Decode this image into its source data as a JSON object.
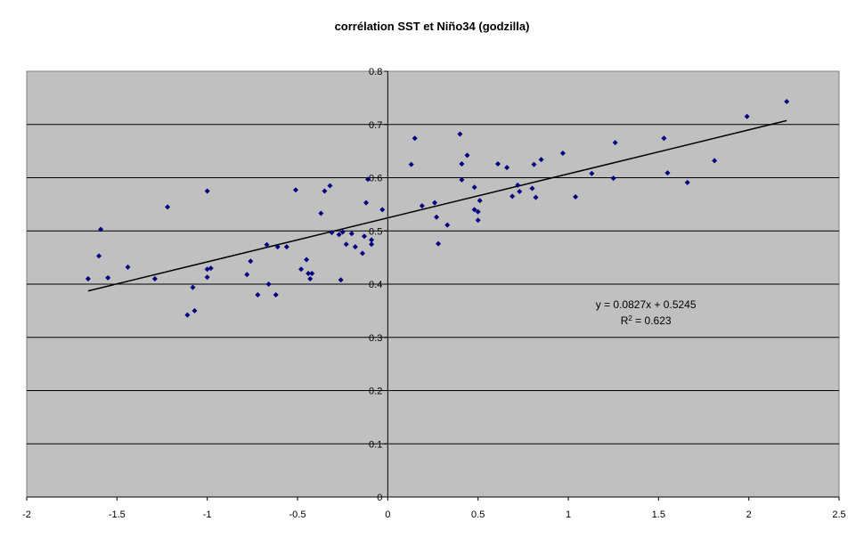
{
  "chart_data": {
    "type": "scatter",
    "title": "corrélation SST et Niño34 (godzilla)",
    "xlabel": "",
    "ylabel": "",
    "xlim": [
      -2,
      2.5
    ],
    "ylim": [
      0,
      0.8
    ],
    "xticks": [
      "-2",
      "-1.5",
      "-1",
      "-0.5",
      "0",
      "0.5",
      "1",
      "1.5",
      "2",
      "2.5"
    ],
    "yticks": [
      "0",
      "0.1",
      "0.2",
      "0.3",
      "0.4",
      "0.5",
      "0.6",
      "0.7",
      "0.8"
    ],
    "grid": "horizontal",
    "colors": {
      "plot_bg": "#c0c0c0",
      "marker": "#00007f",
      "trend": "#000000",
      "gridline": "#000000"
    },
    "points": [
      [
        -1.66,
        0.41
      ],
      [
        -1.6,
        0.453
      ],
      [
        -1.59,
        0.503
      ],
      [
        -1.55,
        0.412
      ],
      [
        -1.44,
        0.432
      ],
      [
        -1.29,
        0.41
      ],
      [
        -1.22,
        0.545
      ],
      [
        -1.11,
        0.342
      ],
      [
        -1.08,
        0.394
      ],
      [
        -1.07,
        0.35
      ],
      [
        -1.0,
        0.428
      ],
      [
        -1.0,
        0.413
      ],
      [
        -1.0,
        0.575
      ],
      [
        -0.98,
        0.43
      ],
      [
        -0.78,
        0.418
      ],
      [
        -0.76,
        0.443
      ],
      [
        -0.72,
        0.38
      ],
      [
        -0.67,
        0.474
      ],
      [
        -0.66,
        0.4
      ],
      [
        -0.62,
        0.38
      ],
      [
        -0.61,
        0.47
      ],
      [
        -0.56,
        0.47
      ],
      [
        -0.51,
        0.577
      ],
      [
        -0.48,
        0.428
      ],
      [
        -0.45,
        0.446
      ],
      [
        -0.44,
        0.42
      ],
      [
        -0.43,
        0.41
      ],
      [
        -0.42,
        0.42
      ],
      [
        -0.37,
        0.533
      ],
      [
        -0.35,
        0.575
      ],
      [
        -0.32,
        0.585
      ],
      [
        -0.31,
        0.497
      ],
      [
        -0.27,
        0.493
      ],
      [
        -0.26,
        0.408
      ],
      [
        -0.25,
        0.498
      ],
      [
        -0.23,
        0.475
      ],
      [
        -0.2,
        0.495
      ],
      [
        -0.18,
        0.47
      ],
      [
        -0.14,
        0.458
      ],
      [
        -0.13,
        0.49
      ],
      [
        -0.12,
        0.553
      ],
      [
        -0.11,
        0.597
      ],
      [
        -0.09,
        0.475
      ],
      [
        -0.09,
        0.483
      ],
      [
        -0.03,
        0.54
      ],
      [
        0.13,
        0.625
      ],
      [
        0.15,
        0.674
      ],
      [
        0.19,
        0.547
      ],
      [
        0.26,
        0.553
      ],
      [
        0.27,
        0.526
      ],
      [
        0.28,
        0.476
      ],
      [
        0.33,
        0.511
      ],
      [
        0.4,
        0.682
      ],
      [
        0.41,
        0.596
      ],
      [
        0.41,
        0.626
      ],
      [
        0.44,
        0.642
      ],
      [
        0.48,
        0.582
      ],
      [
        0.48,
        0.54
      ],
      [
        0.5,
        0.536
      ],
      [
        0.5,
        0.52
      ],
      [
        0.51,
        0.557
      ],
      [
        0.61,
        0.626
      ],
      [
        0.66,
        0.619
      ],
      [
        0.69,
        0.565
      ],
      [
        0.72,
        0.586
      ],
      [
        0.73,
        0.574
      ],
      [
        0.8,
        0.58
      ],
      [
        0.81,
        0.625
      ],
      [
        0.82,
        0.563
      ],
      [
        0.85,
        0.634
      ],
      [
        0.97,
        0.646
      ],
      [
        1.04,
        0.564
      ],
      [
        1.13,
        0.608
      ],
      [
        1.25,
        0.599
      ],
      [
        1.26,
        0.666
      ],
      [
        1.53,
        0.674
      ],
      [
        1.55,
        0.609
      ],
      [
        1.66,
        0.591
      ],
      [
        1.81,
        0.632
      ],
      [
        1.99,
        0.715
      ],
      [
        2.21,
        0.743
      ]
    ],
    "trendline": {
      "slope": 0.0827,
      "intercept": 0.5245,
      "x_range": [
        -1.66,
        2.21
      ]
    },
    "annotations": {
      "equation": "y = 0.0827x + 0.5245",
      "r2_prefix": "R",
      "r2_superscript": "2",
      "r2_value": " = 0.623"
    }
  }
}
